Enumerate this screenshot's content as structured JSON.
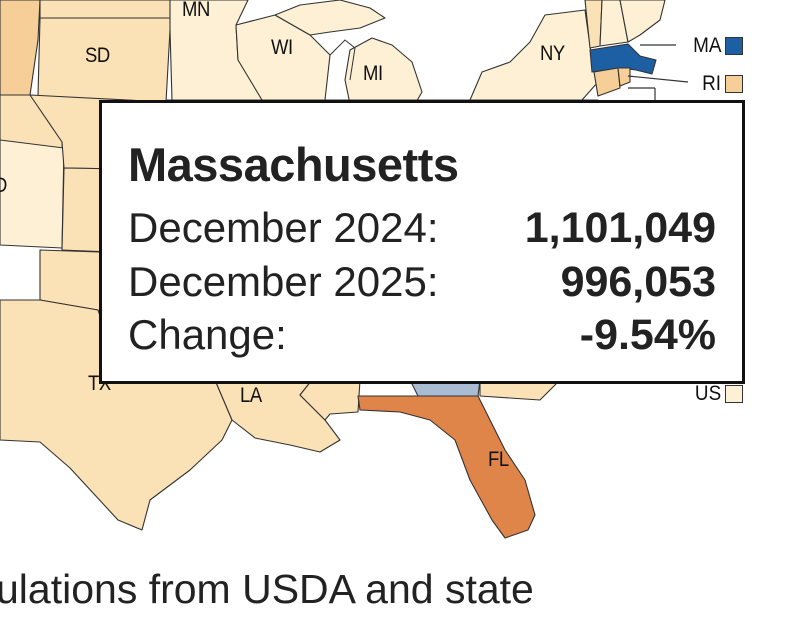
{
  "colors": {
    "pale": "#fdf0d5",
    "light": "#fbe1b6",
    "mid": "#f6cf98",
    "orange": "#e0854a",
    "blue": "#1d5fa3",
    "lightblue": "#a9bcd3",
    "border": "#333333"
  },
  "map": {
    "state_labels": [
      "MN",
      "SD",
      "WI",
      "MI",
      "NY",
      "TX",
      "LA",
      "FL",
      "D"
    ],
    "legend": [
      {
        "label": "MA",
        "color": "#1d5fa3"
      },
      {
        "label": "RI",
        "color": "#f6cf98"
      },
      {
        "label": "US",
        "color": "#fdf0d5"
      }
    ]
  },
  "tooltip": {
    "title": "Massachusetts",
    "rows": [
      {
        "label": "December 2024:",
        "value": "1,101,049"
      },
      {
        "label": "December 2025:",
        "value": "996,053"
      },
      {
        "label": "Change:",
        "value": "-9.54%"
      }
    ]
  },
  "caption": "ulations from USDA and state"
}
